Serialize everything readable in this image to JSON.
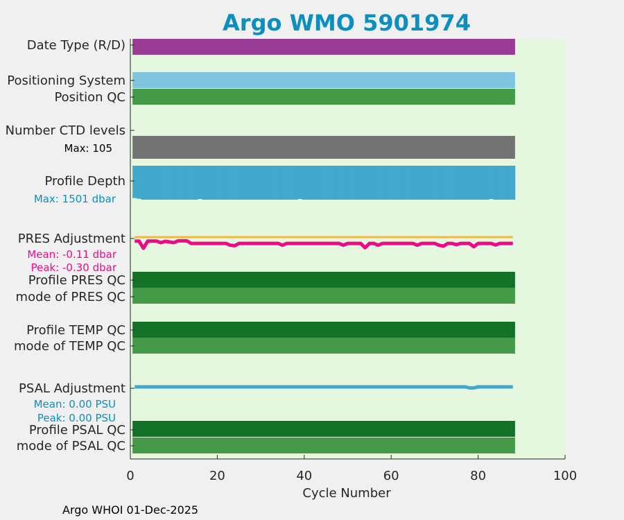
{
  "chart_data": {
    "type": "bar",
    "title": "Argo WMO 5901974",
    "xlabel": "Cycle Number",
    "xlim": [
      0,
      100
    ],
    "xticks": [
      "0",
      "20",
      "40",
      "60",
      "80",
      "100"
    ],
    "footer": "Argo WHOI 01-Dec-2025",
    "n_cycles": 88,
    "colors": {
      "background": "#e5f8df",
      "title": "#0b8fbf",
      "date_type": "#9a3b96",
      "positioning_system": "#7fc5df",
      "qc_good_mode": "#459a47",
      "qc_profile": "#137228",
      "ctd_levels": "#737373",
      "depth": "#42a9cd",
      "pres_adj": "#ee0a87",
      "pres_raw": "#f7b73a",
      "psal_adj": "#42a9cd",
      "pres_stats": "#ee0a87",
      "psal_stats": "#0b8fbf"
    },
    "rows": {
      "date_type": "Date Type (R/D)",
      "positioning_system": "Positioning System",
      "position_qc": "Position QC",
      "ctd_levels": "Number CTD levels",
      "ctd_max": "Max: 105",
      "profile_depth": "Profile Depth",
      "depth_max": "Max: 1501 dbar",
      "pres_adjustment": "PRES Adjustment",
      "pres_mean": "Mean: -0.11 dbar",
      "pres_peak": "Peak: -0.30 dbar",
      "profile_pres_qc": "Profile PRES QC",
      "mode_pres_qc": "mode of PRES QC",
      "profile_temp_qc": "Profile TEMP QC",
      "mode_temp_qc": "mode of TEMP QC",
      "psal_adjustment": "PSAL Adjustment",
      "psal_mean": "Mean: 0.00 PSU",
      "psal_peak": "Peak: 0.00 PSU",
      "profile_psal_qc": "Profile PSAL QC",
      "mode_psal_qc": "mode of PSAL QC"
    },
    "profile_depth_dbar": {
      "default": 1501,
      "overrides": {
        "1": 1430,
        "2": 1460,
        "16": 1470,
        "39": 1470,
        "83": 1470
      }
    },
    "pres_adjustment_dbar": {
      "default": -0.11,
      "overrides": {
        "1": -0.02,
        "2": -0.02,
        "3": -0.3,
        "4": -0.02,
        "5": -0.02,
        "6": -0.02,
        "7": -0.08,
        "8": -0.03,
        "9": -0.05,
        "10": -0.08,
        "11": -0.01,
        "12": -0.01,
        "13": -0.01,
        "23": -0.18,
        "24": -0.2,
        "35": -0.18,
        "49": -0.18,
        "54": -0.28,
        "57": -0.18,
        "66": -0.18,
        "71": -0.18,
        "72": -0.22,
        "75": -0.16,
        "79": -0.24,
        "84": -0.17
      }
    },
    "pres_raw_offset_dbar": 0.0,
    "psal_adjustment_psu": {
      "default": 0.0,
      "overrides": {
        "78": -0.003,
        "79": -0.003
      }
    }
  }
}
